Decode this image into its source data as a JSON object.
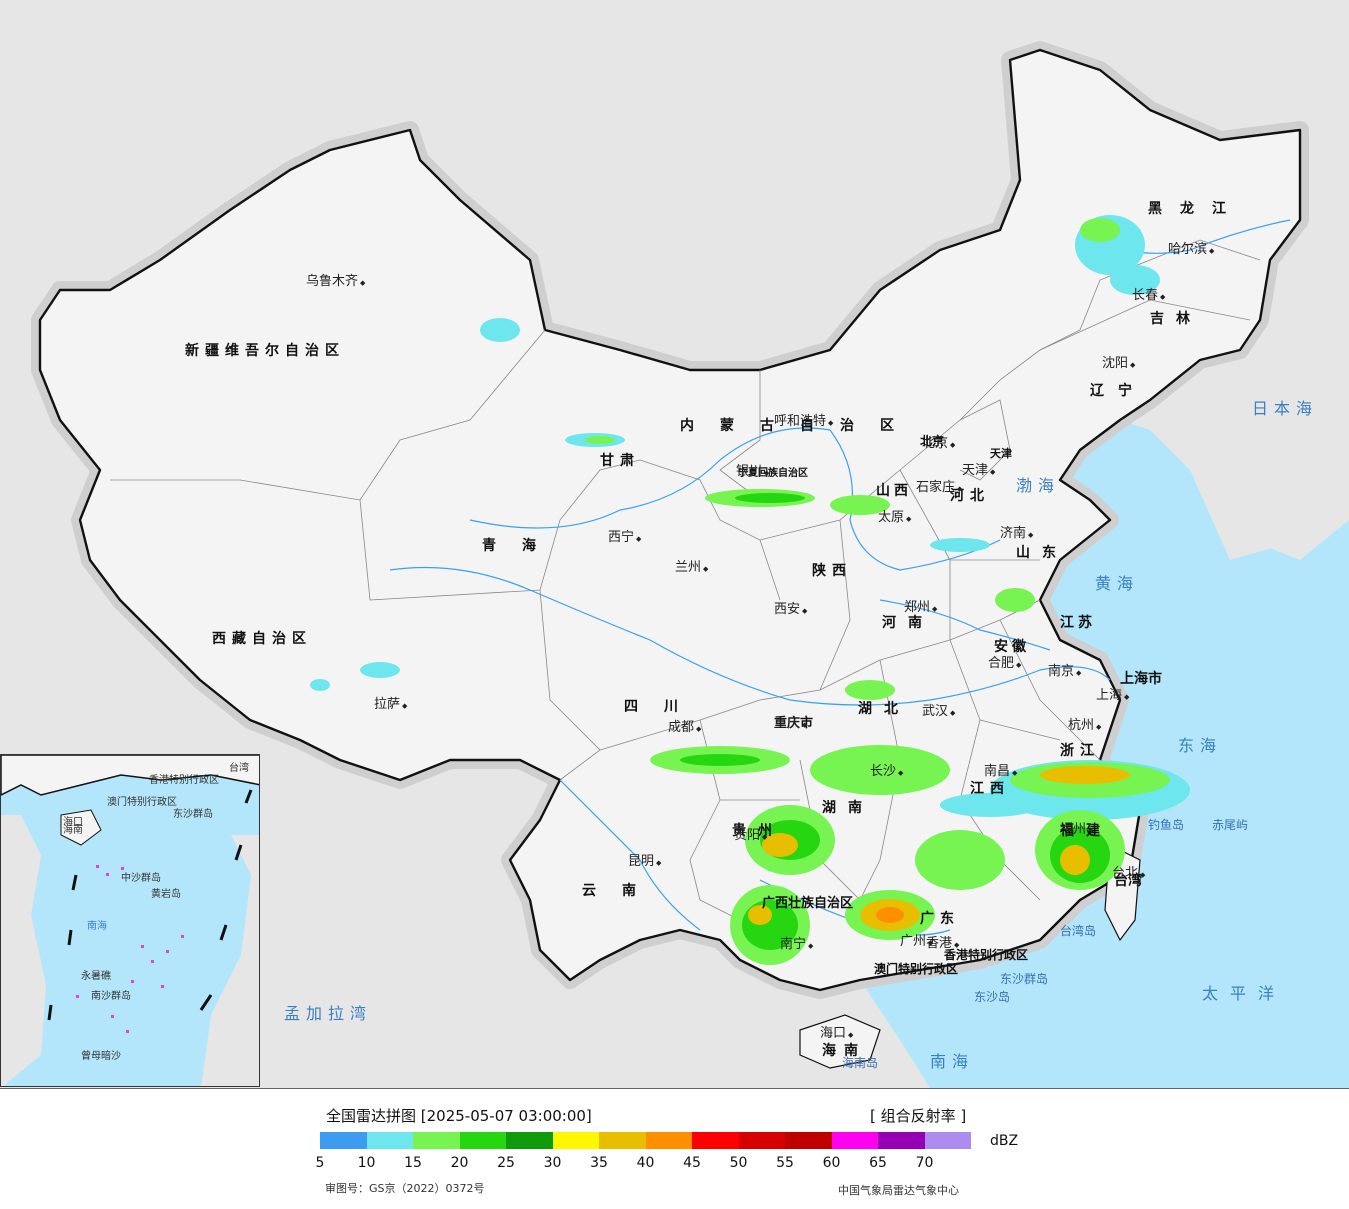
{
  "legend": {
    "title": "全国雷达拼图 [2025-05-07 03:00:00]",
    "product": "[ 组合反射率 ]",
    "unit": "dBZ",
    "ticks": [
      "5",
      "10",
      "15",
      "20",
      "25",
      "30",
      "35",
      "40",
      "45",
      "50",
      "55",
      "60",
      "65",
      "70"
    ],
    "colors": [
      "#3d9cf0",
      "#6ee6ee",
      "#77f452",
      "#26d611",
      "#0e9a0a",
      "#fdf800",
      "#e8bf00",
      "#fd8f00",
      "#fd0000",
      "#d60000",
      "#c00000",
      "#ff00f0",
      "#9600b4",
      "#ad8cf0"
    ],
    "approval": "审图号：GS京（2022）0372号",
    "organization": "中国气象局雷达气象中心"
  },
  "colors": {
    "sea": "#b3e6fb",
    "foreign_land": "#e6e6e6",
    "china_land": "#f4f4f4",
    "river": "#3aa0f0",
    "border": "#111111"
  },
  "regions": [
    "新疆维吾尔自治区",
    "西藏自治区",
    "青海",
    "甘肃",
    "内蒙古自治区",
    "黑龙江",
    "吉林",
    "辽宁",
    "河北",
    "山西",
    "陕西",
    "河南",
    "山东",
    "江苏",
    "安徽",
    "浙江",
    "江西",
    "湖北",
    "湖南",
    "四川",
    "重庆市",
    "贵州",
    "云南",
    "广西壮族自治区",
    "广东",
    "福建",
    "台湾",
    "海南",
    "宁夏回族自治区",
    "上海市",
    "天津",
    "北京",
    "香港特别行政区",
    "澳门特别行政区"
  ],
  "cities": [
    "乌鲁木齐",
    "拉萨",
    "西宁",
    "兰州",
    "银川",
    "呼和浩特",
    "北京",
    "天津",
    "石家庄",
    "太原",
    "济南",
    "郑州",
    "西安",
    "成都",
    "重庆",
    "贵阳",
    "昆明",
    "南宁",
    "广州",
    "香港",
    "长沙",
    "武汉",
    "南昌",
    "合肥",
    "南京",
    "上海",
    "杭州",
    "福州",
    "台北",
    "海口",
    "沈阳",
    "长春",
    "哈尔滨"
  ],
  "seas": [
    "日本海",
    "渤海",
    "黄海",
    "东海",
    "太平洋",
    "南海",
    "孟加拉湾"
  ],
  "islands": [
    "钓鱼岛",
    "赤尾屿",
    "台湾岛",
    "东沙群岛",
    "东沙岛",
    "海南岛"
  ],
  "inset": {
    "labels": [
      "海南",
      "海口",
      "中沙群岛",
      "南海",
      "黄岩岛",
      "东沙群岛",
      "曾母暗沙",
      "南沙群岛",
      "台湾",
      "永暑礁",
      "澳门特别行政区",
      "香港特别行政区"
    ]
  }
}
